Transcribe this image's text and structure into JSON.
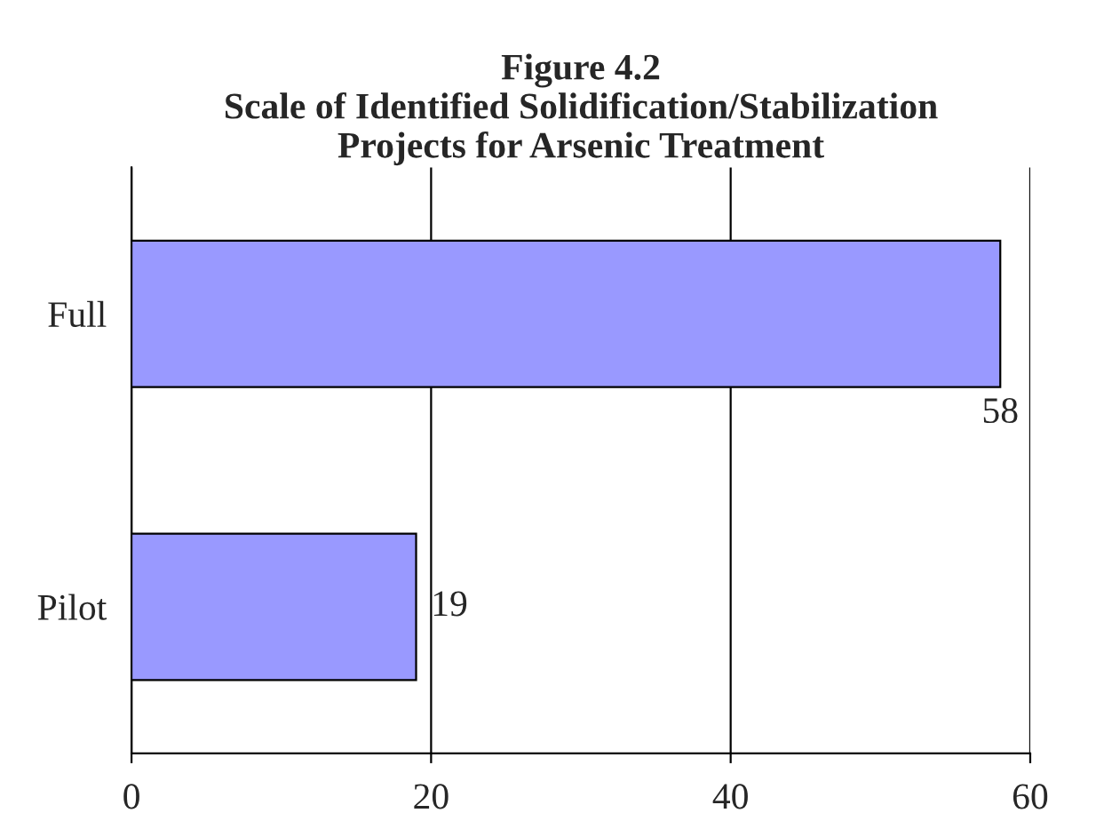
{
  "chart_data": {
    "type": "bar",
    "orientation": "horizontal",
    "title": "Figure 4.2\nScale of Identified Solidification/Stabilization\nProjects for Arsenic Treatment",
    "categories": [
      "Full",
      "Pilot"
    ],
    "values": [
      58,
      19
    ],
    "color": "#9999ff",
    "xlim": [
      0,
      60
    ],
    "xticks": [
      0,
      20,
      40,
      60
    ],
    "grid": "x",
    "data_labels": true
  }
}
